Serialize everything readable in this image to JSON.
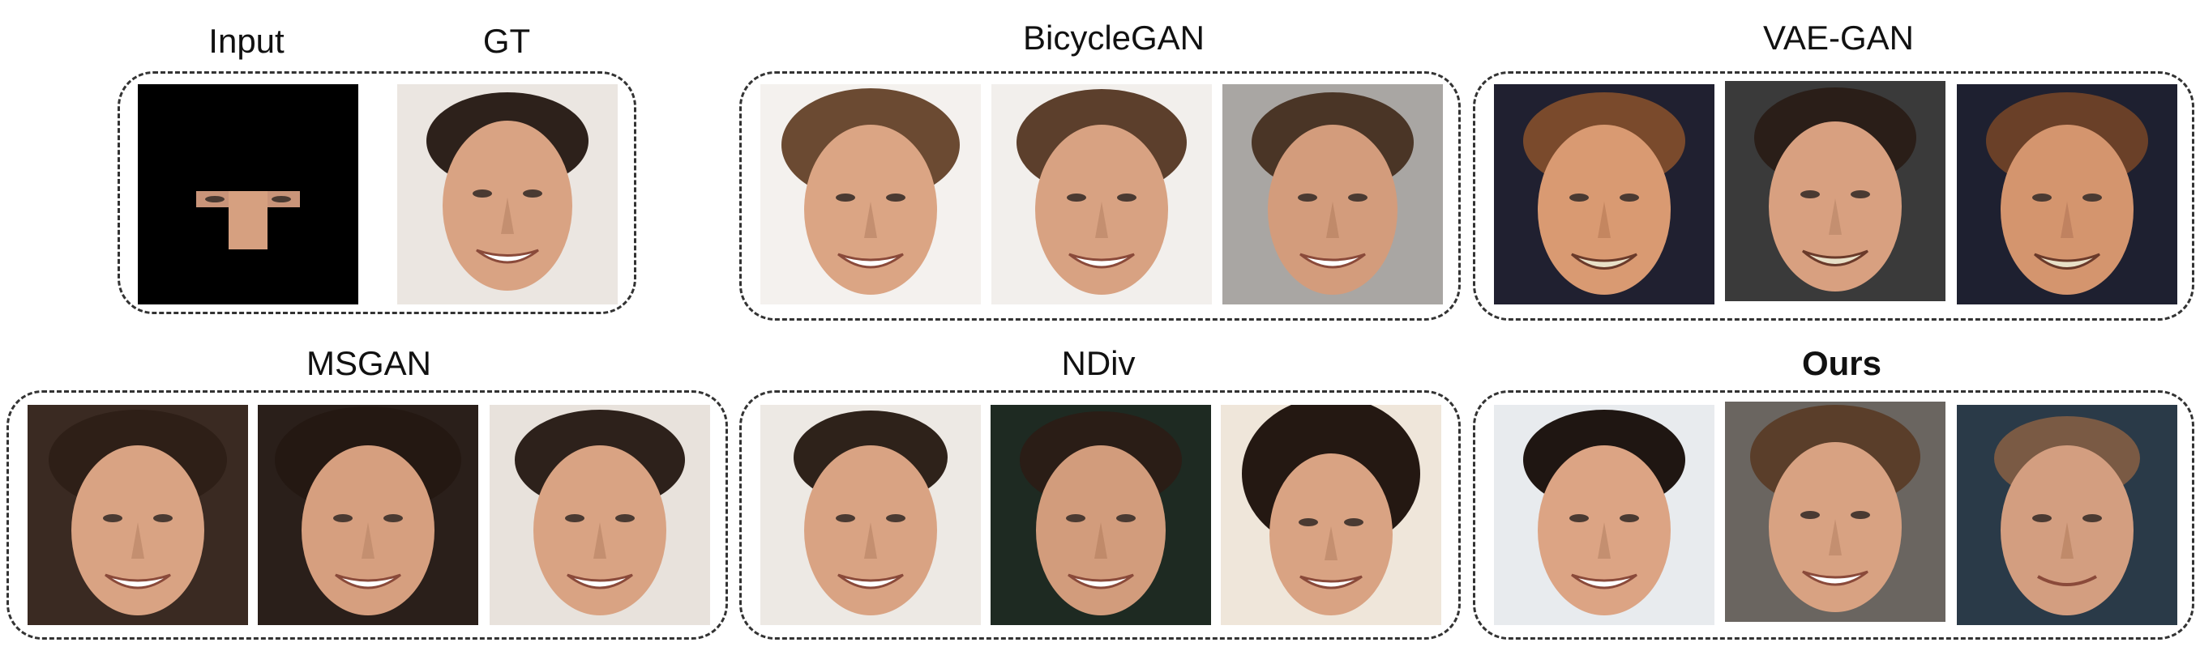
{
  "figure": {
    "labels": {
      "input": "Input",
      "gt": "GT",
      "bicyclegan": "BicycleGAN",
      "vaegan": "VAE-GAN",
      "msgan": "MSGAN",
      "ndiv": "NDiv",
      "ours": "Ours"
    },
    "skin_color": "#d9a383",
    "hair_color": "#3a2a20",
    "background_light": "#f2f2f2",
    "background_dark": "#000000"
  }
}
